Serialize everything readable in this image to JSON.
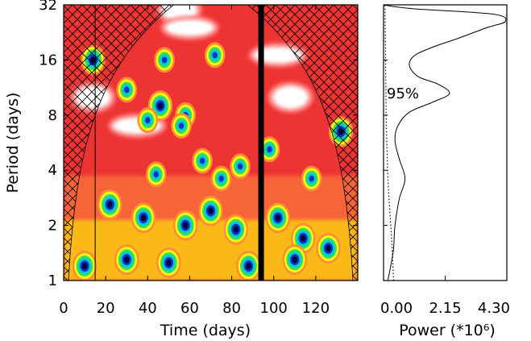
{
  "chart_data": [
    {
      "type": "heatmap",
      "title": "",
      "xlabel": "Time (days)",
      "ylabel": "Period (days)",
      "xlim": [
        0,
        140
      ],
      "ylim": [
        1,
        32
      ],
      "y_scale": "log2",
      "x_ticks": [
        "0",
        "20",
        "40",
        "60",
        "80",
        "100",
        "120"
      ],
      "x_tick_values": [
        0,
        20,
        40,
        60,
        80,
        100,
        120
      ],
      "y_ticks": [
        "1",
        "2",
        "4",
        "8",
        "16",
        "32"
      ],
      "y_tick_values": [
        1,
        2,
        4,
        8,
        16,
        32
      ],
      "colormap": [
        "#ffffff",
        "#ff0000",
        "#ff8c3a",
        "#ffff00",
        "#33dd66",
        "#00cccc",
        "#0033cc",
        "#000040"
      ],
      "background_level_color": "#ee2222",
      "vertical_markers": [
        {
          "x": 15,
          "style": "thin line"
        },
        {
          "x": 94,
          "style": "thick black bar"
        }
      ],
      "cone_of_influence": "cross-hatched region outside cone, both edges",
      "power_regions": [
        {
          "t": 14,
          "p": 10,
          "level": 0
        },
        {
          "t": 55,
          "p": 30,
          "level": 0
        },
        {
          "t": 108,
          "p": 10,
          "level": 0
        },
        {
          "t": 60,
          "p": 24,
          "level": 1
        },
        {
          "t": 102,
          "p": 17,
          "level": 1
        },
        {
          "t": 35,
          "p": 7,
          "level": 1
        },
        {
          "t": 14,
          "p": 16,
          "level": 7
        },
        {
          "t": 48,
          "p": 16,
          "level": 6
        },
        {
          "t": 72,
          "p": 17,
          "level": 6
        },
        {
          "t": 30,
          "p": 11,
          "level": 6
        },
        {
          "t": 46,
          "p": 9,
          "level": 7
        },
        {
          "t": 58,
          "p": 8,
          "level": 6
        },
        {
          "t": 40,
          "p": 7.5,
          "level": 6
        },
        {
          "t": 56,
          "p": 7,
          "level": 6
        },
        {
          "t": 44,
          "p": 3.8,
          "level": 6
        },
        {
          "t": 66,
          "p": 4.5,
          "level": 6
        },
        {
          "t": 75,
          "p": 3.6,
          "level": 6
        },
        {
          "t": 84,
          "p": 4.2,
          "level": 6
        },
        {
          "t": 98,
          "p": 5.2,
          "level": 6
        },
        {
          "t": 118,
          "p": 3.6,
          "level": 6
        },
        {
          "t": 132,
          "p": 6.5,
          "level": 7
        },
        {
          "t": 22,
          "p": 2.6,
          "level": 7
        },
        {
          "t": 38,
          "p": 2.2,
          "level": 7
        },
        {
          "t": 58,
          "p": 2.0,
          "level": 7
        },
        {
          "t": 70,
          "p": 2.4,
          "level": 7
        },
        {
          "t": 82,
          "p": 1.9,
          "level": 7
        },
        {
          "t": 102,
          "p": 2.2,
          "level": 7
        },
        {
          "t": 114,
          "p": 1.7,
          "level": 7
        },
        {
          "t": 126,
          "p": 1.5,
          "level": 7
        },
        {
          "t": 10,
          "p": 1.2,
          "level": 7
        },
        {
          "t": 30,
          "p": 1.3,
          "level": 7
        },
        {
          "t": 50,
          "p": 1.25,
          "level": 7
        },
        {
          "t": 88,
          "p": 1.2,
          "level": 7
        },
        {
          "t": 110,
          "p": 1.3,
          "level": 7
        }
      ],
      "grid": false
    },
    {
      "type": "line",
      "title": "",
      "xlabel": "Power (*10⁶)",
      "ylabel": "",
      "xlim": [
        0,
        4.3
      ],
      "ylim": [
        1,
        32
      ],
      "y_scale": "log2",
      "x_ticks": [
        "0.00",
        "2.15",
        "4.30"
      ],
      "x_tick_values": [
        0,
        2.15,
        4.3
      ],
      "annotation": "95%",
      "series": [
        {
          "style": "solid",
          "points": [
            [
              0.15,
              1
            ],
            [
              0.25,
              1.2
            ],
            [
              0.35,
              1.5
            ],
            [
              0.4,
              2
            ],
            [
              0.55,
              2.8
            ],
            [
              0.75,
              3.6
            ],
            [
              0.55,
              4.6
            ],
            [
              0.4,
              5.8
            ],
            [
              0.5,
              7
            ],
            [
              0.9,
              8.3
            ],
            [
              1.7,
              9.4
            ],
            [
              2.3,
              10.5
            ],
            [
              1.9,
              11.8
            ],
            [
              1.2,
              13
            ],
            [
              0.9,
              15
            ],
            [
              1.1,
              17
            ],
            [
              1.8,
              19
            ],
            [
              2.6,
              21
            ],
            [
              3.6,
              24
            ],
            [
              4.25,
              26
            ],
            [
              3.8,
              28.5
            ],
            [
              1.0,
              30.5
            ],
            [
              0.0,
              32
            ]
          ]
        },
        {
          "style": "dotted",
          "points": [
            [
              0.35,
              1
            ],
            [
              0.3,
              1.5
            ],
            [
              0.25,
              2
            ],
            [
              0.18,
              3
            ],
            [
              0.14,
              4
            ],
            [
              0.11,
              6
            ],
            [
              0.09,
              8
            ],
            [
              0.08,
              12
            ],
            [
              0.07,
              16
            ],
            [
              0.06,
              24
            ],
            [
              0.05,
              32
            ]
          ]
        }
      ],
      "grid": false
    }
  ]
}
